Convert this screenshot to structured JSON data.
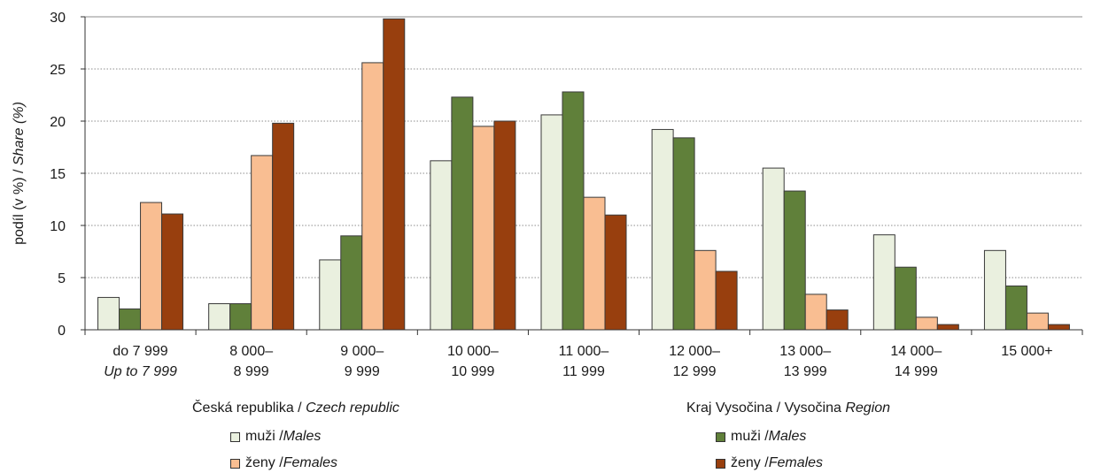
{
  "chart_data": {
    "type": "bar",
    "ylabel": "podíl (v %) / ",
    "ylabel_italic": "Share (%)",
    "ylim": [
      0,
      30
    ],
    "yticks": [
      0,
      5,
      10,
      15,
      20,
      25,
      30
    ],
    "grid": true,
    "categories": [
      {
        "line1": "do 7 999",
        "line2": "Up to 7 999",
        "line2_italic": true
      },
      {
        "line1": "8 000–",
        "line2": "8 999"
      },
      {
        "line1": "9 000–",
        "line2": "9 999"
      },
      {
        "line1": "10 000–",
        "line2": "10 999"
      },
      {
        "line1": "11 000–",
        "line2": "11 999"
      },
      {
        "line1": "12 000–",
        "line2": "12 999"
      },
      {
        "line1": "13 000–",
        "line2": "13 999"
      },
      {
        "line1": "14 000–",
        "line2": "14 999"
      },
      {
        "line1": "15 000+",
        "line2": ""
      }
    ],
    "series": [
      {
        "key": "cz_m",
        "color": "#eaf0df",
        "values": [
          3.1,
          2.5,
          6.7,
          16.2,
          20.6,
          19.2,
          15.5,
          9.1,
          7.6
        ]
      },
      {
        "key": "vy_m",
        "color": "#60803a",
        "values": [
          2.0,
          2.5,
          9.0,
          22.3,
          22.8,
          18.4,
          13.3,
          6.0,
          4.2
        ]
      },
      {
        "key": "cz_f",
        "color": "#f9be92",
        "values": [
          12.2,
          16.7,
          25.6,
          19.5,
          12.7,
          7.6,
          3.4,
          1.2,
          1.6
        ]
      },
      {
        "key": "vy_f",
        "color": "#983f0e",
        "values": [
          11.1,
          19.8,
          29.8,
          20.0,
          11.0,
          5.6,
          1.9,
          0.5,
          0.5
        ]
      }
    ]
  },
  "legend": {
    "groups": [
      {
        "title": "Česká republika  / ",
        "title_italic": "Czech republic",
        "items": [
          {
            "label": "muži / ",
            "label_italic": "Males",
            "color": "#eaf0df"
          },
          {
            "label": "ženy / ",
            "label_italic": "Females",
            "color": "#f9be92"
          }
        ]
      },
      {
        "title": "Kraj Vysočina /  Vysočina ",
        "title_italic": "Region",
        "items": [
          {
            "label": "muži /  ",
            "label_italic": "Males",
            "color": "#60803a"
          },
          {
            "label": "ženy /  ",
            "label_italic": "Females",
            "color": "#983f0e"
          }
        ]
      }
    ]
  }
}
